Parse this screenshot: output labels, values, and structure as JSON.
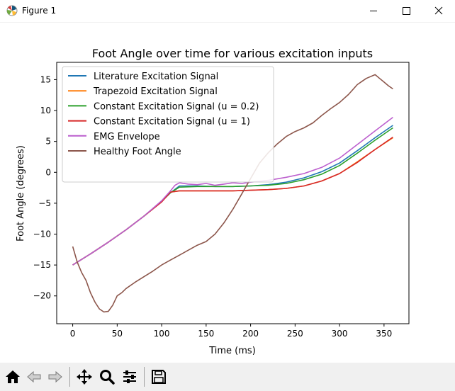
{
  "window": {
    "title": "Figure 1",
    "controls": {
      "minimize_icon": "minimize-icon",
      "maximize_icon": "maximize-icon",
      "close_icon": "close-icon"
    }
  },
  "toolbar": {
    "buttons": [
      {
        "name": "home-button",
        "icon": "home-icon"
      },
      {
        "name": "back-button",
        "icon": "arrow-left-icon"
      },
      {
        "name": "forward-button",
        "icon": "arrow-right-icon"
      },
      {
        "name": "pan-button",
        "icon": "move-icon"
      },
      {
        "name": "zoom-button",
        "icon": "magnifier-icon"
      },
      {
        "name": "configure-subplots-button",
        "icon": "sliders-icon"
      },
      {
        "name": "save-button",
        "icon": "floppy-disk-icon"
      }
    ]
  },
  "chart_data": {
    "type": "line",
    "title": "Foot Angle over time for various excitation inputs",
    "xlabel": "Time (ms)",
    "ylabel": "Foot Angle (degrees)",
    "xlim": [
      -18,
      378
    ],
    "ylim": [
      -24.5,
      17.8
    ],
    "xticks": [
      0,
      50,
      100,
      150,
      200,
      250,
      300,
      350
    ],
    "yticks": [
      -20,
      -15,
      -10,
      -5,
      0,
      5,
      10,
      15
    ],
    "grid": false,
    "legend_position": "upper-left",
    "series": [
      {
        "name": "Literature Excitation Signal",
        "color": "#1f77b4",
        "x": [
          0,
          20,
          40,
          60,
          80,
          100,
          110,
          120,
          140,
          160,
          180,
          200,
          220,
          240,
          260,
          280,
          300,
          320,
          340,
          360
        ],
        "y": [
          -15,
          -13.2,
          -11.3,
          -9.3,
          -7.1,
          -4.7,
          -3.3,
          -2.2,
          -2.2,
          -2.3,
          -2.3,
          -2.2,
          -2.0,
          -1.6,
          -0.9,
          0.1,
          1.5,
          3.5,
          5.6,
          7.6
        ]
      },
      {
        "name": "Trapezoid Excitation Signal",
        "color": "#ff7f0e",
        "x": [
          0,
          20,
          40,
          60,
          80,
          100,
          110,
          120,
          140,
          160,
          180,
          200,
          220,
          240,
          260,
          280,
          300,
          320,
          340,
          360
        ],
        "y": [
          -15,
          -13.2,
          -11.3,
          -9.3,
          -7.1,
          -4.7,
          -3.2,
          -3.0,
          -3.0,
          -3.0,
          -3.0,
          -2.9,
          -2.8,
          -2.6,
          -2.2,
          -1.4,
          -0.2,
          1.7,
          3.7,
          5.6
        ]
      },
      {
        "name": "Constant Excitation Signal (u = 0.2)",
        "color": "#2ca02c",
        "x": [
          0,
          20,
          40,
          60,
          80,
          100,
          110,
          120,
          140,
          160,
          180,
          200,
          220,
          240,
          260,
          280,
          300,
          320,
          340,
          360
        ],
        "y": [
          -15,
          -13.2,
          -11.3,
          -9.3,
          -7.1,
          -4.7,
          -3.3,
          -2.4,
          -2.3,
          -2.3,
          -2.3,
          -2.2,
          -2.1,
          -1.8,
          -1.2,
          -0.3,
          1.1,
          3.1,
          5.2,
          7.2
        ]
      },
      {
        "name": "Constant Excitation Signal (u = 1)",
        "color": "#d62728",
        "x": [
          0,
          20,
          40,
          60,
          80,
          100,
          110,
          120,
          140,
          160,
          180,
          200,
          220,
          240,
          260,
          280,
          300,
          320,
          340,
          360
        ],
        "y": [
          -15,
          -13.2,
          -11.3,
          -9.3,
          -7.1,
          -4.8,
          -3.2,
          -3.0,
          -3.0,
          -3.0,
          -3.0,
          -2.9,
          -2.8,
          -2.6,
          -2.2,
          -1.4,
          -0.2,
          1.6,
          3.7,
          5.7
        ]
      },
      {
        "name": "EMG Envelope",
        "color": "#bc5fce",
        "x": [
          0,
          20,
          40,
          60,
          80,
          100,
          110,
          115,
          120,
          130,
          140,
          150,
          160,
          170,
          180,
          190,
          200,
          220,
          240,
          260,
          280,
          300,
          320,
          340,
          360
        ],
        "y": [
          -15,
          -13.2,
          -11.3,
          -9.3,
          -7.1,
          -4.6,
          -3.0,
          -2.1,
          -1.7,
          -1.9,
          -2.0,
          -1.8,
          -2.1,
          -1.9,
          -1.7,
          -1.8,
          -1.6,
          -1.3,
          -0.8,
          -0.2,
          0.8,
          2.3,
          4.5,
          6.7,
          8.9
        ]
      },
      {
        "name": "Healthy Foot Angle",
        "color": "#8c564b",
        "x": [
          0,
          5,
          10,
          15,
          20,
          25,
          30,
          35,
          40,
          45,
          50,
          55,
          60,
          70,
          80,
          90,
          100,
          110,
          120,
          130,
          140,
          150,
          160,
          170,
          180,
          190,
          200,
          210,
          220,
          230,
          240,
          250,
          260,
          270,
          280,
          290,
          300,
          310,
          320,
          330,
          340,
          345,
          350,
          355,
          360
        ],
        "y": [
          -12,
          -14.5,
          -16.2,
          -17.5,
          -19.5,
          -21.0,
          -22.1,
          -22.6,
          -22.5,
          -21.5,
          -20.0,
          -19.5,
          -18.8,
          -17.8,
          -16.9,
          -16.0,
          -15.0,
          -14.2,
          -13.4,
          -12.6,
          -11.8,
          -11.2,
          -10.0,
          -8.2,
          -6.0,
          -3.5,
          -1.0,
          1.5,
          3.2,
          4.6,
          5.8,
          6.6,
          7.2,
          8.0,
          9.2,
          10.3,
          11.3,
          12.6,
          14.2,
          15.2,
          15.8,
          15.2,
          14.6,
          14.0,
          13.5
        ]
      }
    ]
  }
}
